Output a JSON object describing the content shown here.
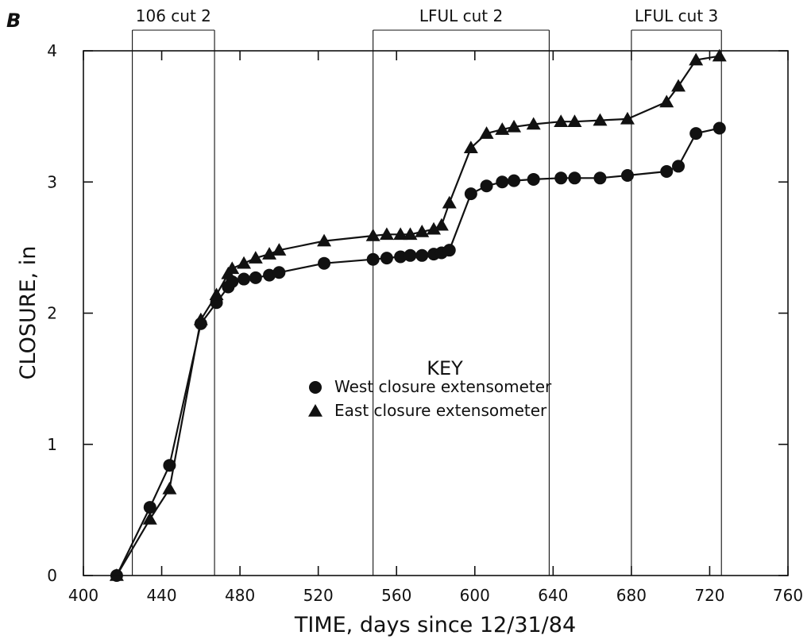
{
  "chart_data": {
    "type": "line",
    "panel_label": "B",
    "xlabel": "TIME, days since 12/31/84",
    "ylabel": "CLOSURE, in",
    "xlim": [
      400,
      760
    ],
    "ylim": [
      0,
      4
    ],
    "x_ticks": [
      400,
      440,
      480,
      520,
      560,
      600,
      640,
      680,
      720,
      760
    ],
    "y_ticks": [
      0,
      1,
      2,
      3,
      4
    ],
    "grid": false,
    "legend": {
      "title": "KEY",
      "placement": "center"
    },
    "periods": [
      {
        "label": "106 cut 2",
        "start": 425,
        "end": 467
      },
      {
        "label": "LFUL cut 2",
        "start": 548,
        "end": 638
      },
      {
        "label": "LFUL cut 3",
        "start": 680,
        "end": 726
      }
    ],
    "series": [
      {
        "name": "West closure extensometer",
        "marker": "circle",
        "x": [
          417,
          434,
          444,
          460,
          468,
          474,
          476,
          482,
          488,
          495,
          500,
          523,
          548,
          555,
          562,
          567,
          573,
          579,
          583,
          587,
          598,
          606,
          614,
          620,
          630,
          644,
          651,
          664,
          678,
          698,
          704,
          713,
          725
        ],
        "y": [
          0.0,
          0.52,
          0.84,
          1.92,
          2.08,
          2.2,
          2.24,
          2.26,
          2.27,
          2.29,
          2.31,
          2.38,
          2.41,
          2.42,
          2.43,
          2.44,
          2.44,
          2.45,
          2.46,
          2.48,
          2.91,
          2.97,
          3.0,
          3.01,
          3.02,
          3.03,
          3.03,
          3.03,
          3.05,
          3.08,
          3.12,
          3.37,
          3.41
        ]
      },
      {
        "name": "East closure extensometer",
        "marker": "triangle",
        "x": [
          417,
          434,
          444,
          460,
          468,
          474,
          476,
          482,
          488,
          495,
          500,
          523,
          548,
          555,
          562,
          567,
          573,
          579,
          583,
          587,
          598,
          606,
          614,
          620,
          630,
          644,
          651,
          664,
          678,
          698,
          704,
          713,
          725
        ],
        "y": [
          0.0,
          0.43,
          0.66,
          1.95,
          2.14,
          2.3,
          2.34,
          2.38,
          2.42,
          2.45,
          2.48,
          2.55,
          2.59,
          2.6,
          2.6,
          2.6,
          2.62,
          2.64,
          2.67,
          2.84,
          3.26,
          3.37,
          3.4,
          3.42,
          3.44,
          3.46,
          3.46,
          3.47,
          3.48,
          3.61,
          3.73,
          3.93,
          3.96
        ]
      }
    ]
  }
}
